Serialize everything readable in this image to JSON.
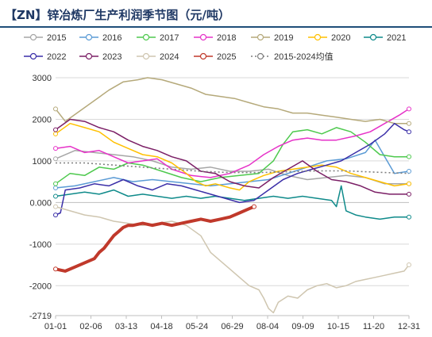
{
  "title": "【ZN】锌冶炼厂生产利润季节图（元/吨）",
  "chart_data": {
    "type": "line",
    "x_tick_labels": [
      "01-01",
      "02-06",
      "03-13",
      "04-18",
      "05-24",
      "06-29",
      "08-04",
      "09-09",
      "10-15",
      "11-20",
      "12-31"
    ],
    "y_tick_labels": [
      "3000",
      "2000",
      "1000",
      "0.000",
      "-1000",
      "-2000",
      "-2719"
    ],
    "y_ticks": [
      3000,
      2000,
      1000,
      0,
      -1000,
      -2000,
      -2719
    ],
    "ylim": [
      -2719,
      3000
    ],
    "xlim": [
      0,
      365
    ],
    "grid": "horizontal",
    "legend_position": "top",
    "series": [
      {
        "name": "2015",
        "color": "#a6a6a6",
        "style": "circle-open",
        "points": [
          [
            0,
            1050
          ],
          [
            20,
            1250
          ],
          [
            40,
            1200
          ],
          [
            60,
            1150
          ],
          [
            80,
            1100
          ],
          [
            100,
            1000
          ],
          [
            120,
            850
          ],
          [
            140,
            800
          ],
          [
            160,
            850
          ],
          [
            180,
            750
          ],
          [
            200,
            750
          ],
          [
            220,
            800
          ],
          [
            240,
            650
          ],
          [
            260,
            550
          ],
          [
            280,
            600
          ],
          [
            300,
            650
          ],
          [
            320,
            600
          ],
          [
            340,
            450
          ],
          [
            365,
            450
          ]
        ]
      },
      {
        "name": "2016",
        "color": "#5b9bd5",
        "style": "circle-open",
        "points": [
          [
            0,
            350
          ],
          [
            20,
            400
          ],
          [
            40,
            500
          ],
          [
            60,
            600
          ],
          [
            80,
            500
          ],
          [
            100,
            550
          ],
          [
            120,
            500
          ],
          [
            140,
            450
          ],
          [
            160,
            400
          ],
          [
            180,
            450
          ],
          [
            200,
            500
          ],
          [
            220,
            550
          ],
          [
            240,
            700
          ],
          [
            260,
            850
          ],
          [
            280,
            1000
          ],
          [
            300,
            1050
          ],
          [
            320,
            1200
          ],
          [
            330,
            1500
          ],
          [
            340,
            1100
          ],
          [
            350,
            700
          ],
          [
            365,
            750
          ]
        ]
      },
      {
        "name": "2017",
        "color": "#4ec94e",
        "style": "circle-open",
        "points": [
          [
            0,
            450
          ],
          [
            15,
            700
          ],
          [
            30,
            650
          ],
          [
            45,
            850
          ],
          [
            60,
            800
          ],
          [
            75,
            950
          ],
          [
            90,
            900
          ],
          [
            110,
            750
          ],
          [
            130,
            600
          ],
          [
            150,
            500
          ],
          [
            170,
            600
          ],
          [
            190,
            650
          ],
          [
            210,
            700
          ],
          [
            225,
            1000
          ],
          [
            235,
            1400
          ],
          [
            245,
            1700
          ],
          [
            260,
            1750
          ],
          [
            275,
            1650
          ],
          [
            290,
            1800
          ],
          [
            305,
            1700
          ],
          [
            320,
            1450
          ],
          [
            335,
            1150
          ],
          [
            350,
            1100
          ],
          [
            365,
            1100
          ]
        ]
      },
      {
        "name": "2018",
        "color": "#e632c8",
        "style": "circle-open",
        "points": [
          [
            0,
            1300
          ],
          [
            15,
            1350
          ],
          [
            30,
            1200
          ],
          [
            45,
            1250
          ],
          [
            60,
            1100
          ],
          [
            75,
            950
          ],
          [
            90,
            1000
          ],
          [
            105,
            1050
          ],
          [
            120,
            800
          ],
          [
            140,
            650
          ],
          [
            160,
            600
          ],
          [
            180,
            700
          ],
          [
            200,
            900
          ],
          [
            215,
            1150
          ],
          [
            230,
            1350
          ],
          [
            245,
            1500
          ],
          [
            260,
            1550
          ],
          [
            275,
            1500
          ],
          [
            290,
            1500
          ],
          [
            310,
            1600
          ],
          [
            325,
            1700
          ],
          [
            340,
            1900
          ],
          [
            355,
            2100
          ],
          [
            365,
            2250
          ]
        ]
      },
      {
        "name": "2019",
        "color": "#b5a97a",
        "style": "circle-open",
        "points": [
          [
            0,
            2250
          ],
          [
            10,
            1950
          ],
          [
            25,
            2200
          ],
          [
            40,
            2450
          ],
          [
            55,
            2700
          ],
          [
            70,
            2900
          ],
          [
            85,
            2950
          ],
          [
            95,
            3000
          ],
          [
            110,
            2950
          ],
          [
            125,
            2850
          ],
          [
            140,
            2750
          ],
          [
            155,
            2600
          ],
          [
            170,
            2550
          ],
          [
            185,
            2500
          ],
          [
            200,
            2400
          ],
          [
            215,
            2300
          ],
          [
            230,
            2250
          ],
          [
            245,
            2150
          ],
          [
            260,
            2150
          ],
          [
            275,
            2100
          ],
          [
            290,
            2050
          ],
          [
            305,
            2000
          ],
          [
            320,
            1950
          ],
          [
            335,
            2000
          ],
          [
            350,
            1900
          ],
          [
            365,
            1900
          ]
        ]
      },
      {
        "name": "2020",
        "color": "#ffc000",
        "style": "circle-open",
        "points": [
          [
            0,
            1650
          ],
          [
            15,
            1900
          ],
          [
            30,
            1800
          ],
          [
            45,
            1700
          ],
          [
            60,
            1450
          ],
          [
            75,
            1300
          ],
          [
            90,
            1150
          ],
          [
            105,
            1100
          ],
          [
            120,
            950
          ],
          [
            135,
            700
          ],
          [
            145,
            500
          ],
          [
            155,
            400
          ],
          [
            165,
            450
          ],
          [
            180,
            350
          ],
          [
            190,
            300
          ],
          [
            200,
            500
          ],
          [
            215,
            650
          ],
          [
            230,
            750
          ],
          [
            245,
            800
          ],
          [
            260,
            850
          ],
          [
            275,
            900
          ],
          [
            290,
            850
          ],
          [
            305,
            700
          ],
          [
            320,
            600
          ],
          [
            335,
            500
          ],
          [
            350,
            400
          ],
          [
            365,
            450
          ]
        ]
      },
      {
        "name": "2021",
        "color": "#0e8a8a",
        "style": "circle-open",
        "points": [
          [
            0,
            150
          ],
          [
            15,
            200
          ],
          [
            30,
            250
          ],
          [
            45,
            200
          ],
          [
            60,
            300
          ],
          [
            75,
            150
          ],
          [
            90,
            200
          ],
          [
            105,
            150
          ],
          [
            120,
            100
          ],
          [
            135,
            150
          ],
          [
            150,
            100
          ],
          [
            165,
            150
          ],
          [
            180,
            100
          ],
          [
            195,
            50
          ],
          [
            210,
            100
          ],
          [
            225,
            150
          ],
          [
            240,
            100
          ],
          [
            255,
            150
          ],
          [
            270,
            100
          ],
          [
            285,
            50
          ],
          [
            290,
            -100
          ],
          [
            295,
            400
          ],
          [
            300,
            -200
          ],
          [
            310,
            -300
          ],
          [
            320,
            -350
          ],
          [
            335,
            -400
          ],
          [
            350,
            -350
          ],
          [
            365,
            -350
          ]
        ]
      },
      {
        "name": "2022",
        "color": "#3b2fa8",
        "style": "circle-open",
        "points": [
          [
            0,
            -300
          ],
          [
            5,
            -250
          ],
          [
            10,
            300
          ],
          [
            25,
            350
          ],
          [
            40,
            450
          ],
          [
            55,
            400
          ],
          [
            70,
            550
          ],
          [
            85,
            400
          ],
          [
            100,
            300
          ],
          [
            115,
            450
          ],
          [
            130,
            400
          ],
          [
            145,
            300
          ],
          [
            160,
            200
          ],
          [
            175,
            100
          ],
          [
            190,
            0
          ],
          [
            205,
            50
          ],
          [
            220,
            300
          ],
          [
            235,
            550
          ],
          [
            250,
            700
          ],
          [
            265,
            800
          ],
          [
            280,
            900
          ],
          [
            295,
            1000
          ],
          [
            310,
            1200
          ],
          [
            325,
            1400
          ],
          [
            340,
            1650
          ],
          [
            350,
            1900
          ],
          [
            360,
            1750
          ],
          [
            365,
            1700
          ]
        ]
      },
      {
        "name": "2023",
        "color": "#7b1f66",
        "style": "circle-open",
        "points": [
          [
            0,
            1750
          ],
          [
            15,
            2000
          ],
          [
            30,
            1950
          ],
          [
            45,
            1800
          ],
          [
            60,
            1700
          ],
          [
            75,
            1500
          ],
          [
            90,
            1350
          ],
          [
            105,
            1250
          ],
          [
            120,
            1100
          ],
          [
            135,
            1000
          ],
          [
            150,
            750
          ],
          [
            165,
            700
          ],
          [
            180,
            500
          ],
          [
            195,
            400
          ],
          [
            210,
            350
          ],
          [
            225,
            600
          ],
          [
            240,
            800
          ],
          [
            255,
            1000
          ],
          [
            270,
            750
          ],
          [
            285,
            550
          ],
          [
            300,
            500
          ],
          [
            315,
            400
          ],
          [
            330,
            250
          ],
          [
            345,
            200
          ],
          [
            365,
            200
          ]
        ]
      },
      {
        "name": "2024",
        "color": "#cfc6b0",
        "style": "circle-open",
        "points": [
          [
            0,
            -100
          ],
          [
            15,
            -200
          ],
          [
            30,
            -300
          ],
          [
            45,
            -350
          ],
          [
            60,
            -450
          ],
          [
            75,
            -500
          ],
          [
            90,
            -550
          ],
          [
            105,
            -500
          ],
          [
            120,
            -450
          ],
          [
            135,
            -550
          ],
          [
            150,
            -800
          ],
          [
            160,
            -1200
          ],
          [
            170,
            -1400
          ],
          [
            180,
            -1600
          ],
          [
            190,
            -1800
          ],
          [
            200,
            -2000
          ],
          [
            210,
            -2100
          ],
          [
            215,
            -2300
          ],
          [
            220,
            -2550
          ],
          [
            225,
            -2650
          ],
          [
            230,
            -2400
          ],
          [
            240,
            -2250
          ],
          [
            250,
            -2300
          ],
          [
            260,
            -2100
          ],
          [
            270,
            -2000
          ],
          [
            280,
            -1950
          ],
          [
            290,
            -2050
          ],
          [
            300,
            -2000
          ],
          [
            310,
            -1900
          ],
          [
            320,
            -1850
          ],
          [
            330,
            -1800
          ],
          [
            340,
            -1750
          ],
          [
            350,
            -1700
          ],
          [
            360,
            -1650
          ],
          [
            365,
            -1500
          ]
        ]
      },
      {
        "name": "2025",
        "color": "#c0392b",
        "style": "circle-open",
        "points": [
          [
            0,
            -1600
          ],
          [
            10,
            -1650
          ],
          [
            20,
            -1550
          ],
          [
            30,
            -1450
          ],
          [
            40,
            -1350
          ],
          [
            45,
            -1200
          ],
          [
            50,
            -1100
          ],
          [
            55,
            -950
          ],
          [
            60,
            -800
          ],
          [
            65,
            -700
          ],
          [
            70,
            -600
          ],
          [
            75,
            -550
          ],
          [
            80,
            -550
          ],
          [
            90,
            -500
          ],
          [
            100,
            -550
          ],
          [
            110,
            -500
          ],
          [
            120,
            -550
          ],
          [
            130,
            -500
          ],
          [
            140,
            -450
          ],
          [
            150,
            -400
          ],
          [
            160,
            -450
          ],
          [
            170,
            -400
          ],
          [
            180,
            -350
          ],
          [
            190,
            -250
          ],
          [
            200,
            -150
          ],
          [
            205,
            -100
          ]
        ]
      },
      {
        "name": "2015-2024均值",
        "color": "#7f7f7f",
        "style": "dotted",
        "points": [
          [
            0,
            950
          ],
          [
            30,
            950
          ],
          [
            60,
            900
          ],
          [
            90,
            850
          ],
          [
            120,
            800
          ],
          [
            150,
            750
          ],
          [
            180,
            720
          ],
          [
            210,
            720
          ],
          [
            240,
            740
          ],
          [
            270,
            760
          ],
          [
            300,
            760
          ],
          [
            330,
            730
          ],
          [
            365,
            700
          ]
        ]
      }
    ]
  }
}
